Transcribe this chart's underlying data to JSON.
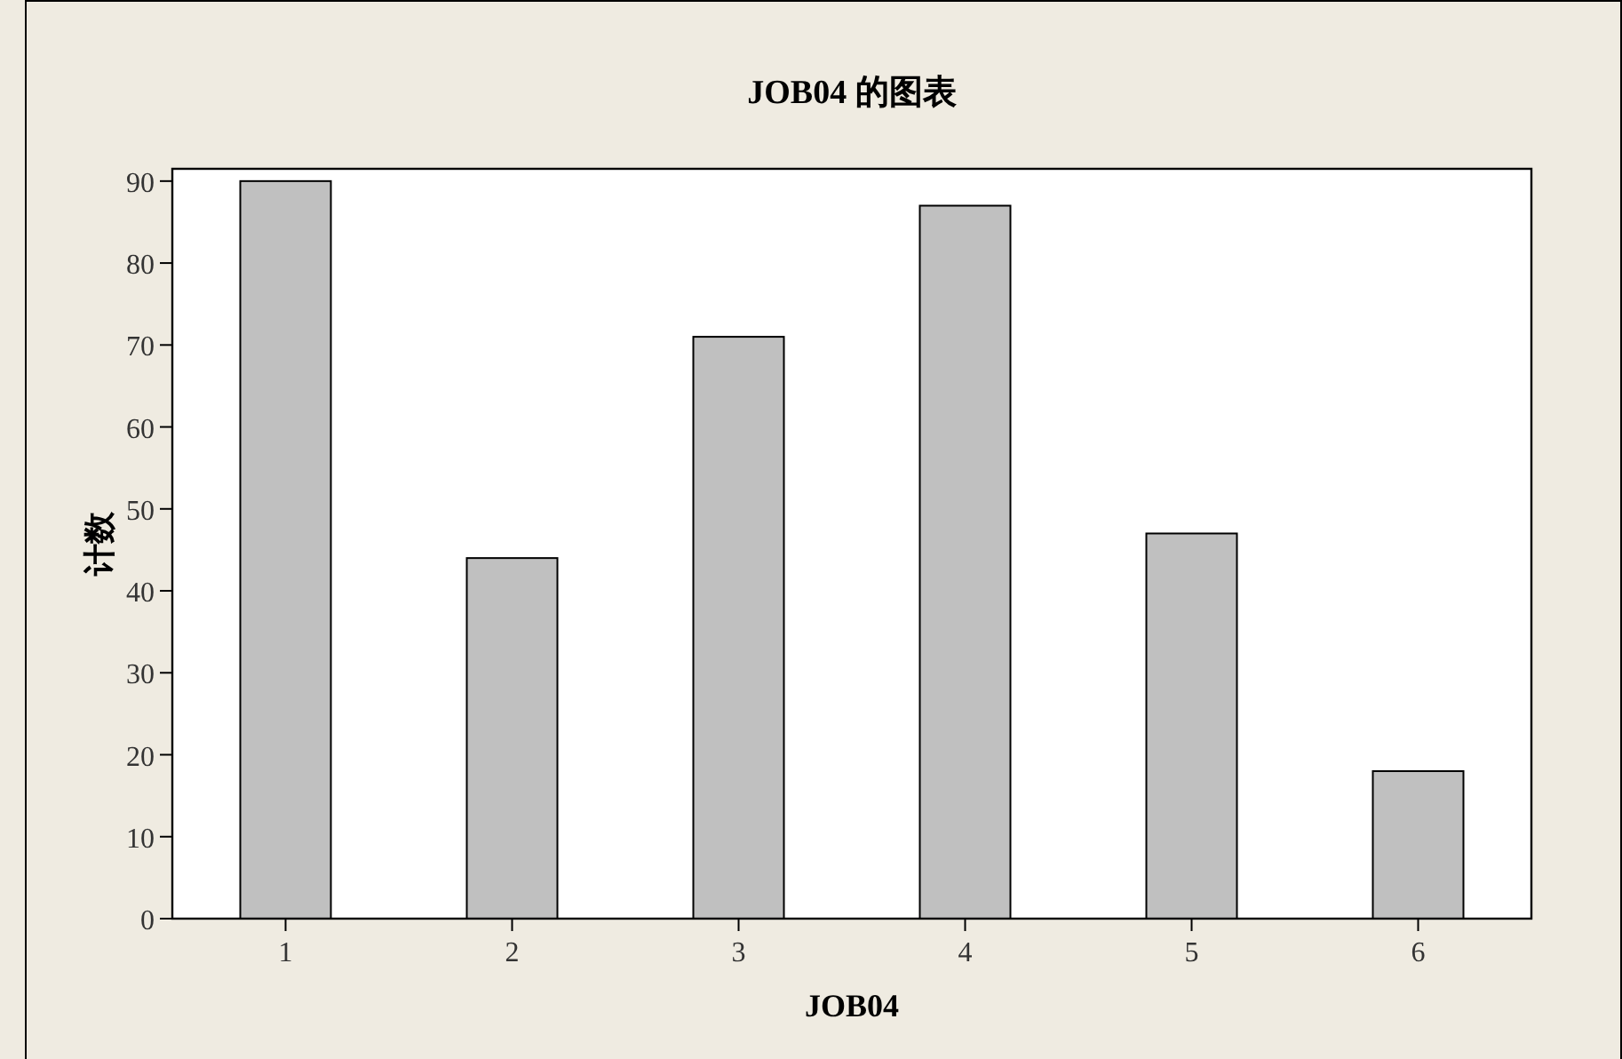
{
  "chart_data": {
    "type": "bar",
    "title": "JOB04 的图表",
    "xlabel": "JOB04",
    "ylabel": "计数",
    "categories": [
      "1",
      "2",
      "3",
      "4",
      "5",
      "6"
    ],
    "values": [
      90,
      44,
      71,
      87,
      47,
      18
    ],
    "color": "#c0c0c0",
    "ylim": [
      0,
      91.5
    ],
    "yticks": [
      0,
      10,
      20,
      30,
      40,
      50,
      60,
      70,
      80,
      90
    ],
    "grid": false
  }
}
